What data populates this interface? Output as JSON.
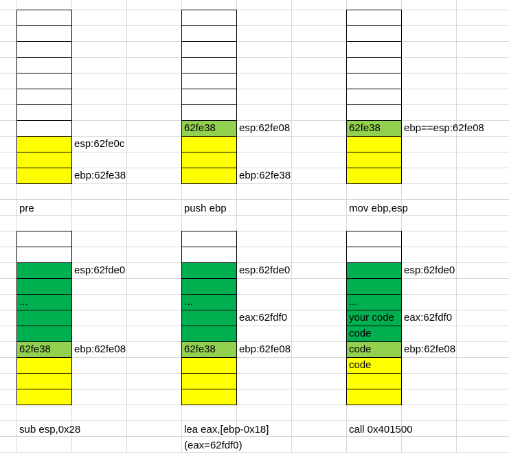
{
  "colors": {
    "empty": "#ffffff",
    "yellow": "#ffff00",
    "green": "#00b050",
    "light_green": "#92d050",
    "border": "#000000",
    "gridline": "#d9d9d9"
  },
  "panels": [
    {
      "caption": [
        "pre"
      ],
      "cells": [
        {
          "color": "empty",
          "text": ""
        },
        {
          "color": "empty",
          "text": ""
        },
        {
          "color": "empty",
          "text": ""
        },
        {
          "color": "empty",
          "text": ""
        },
        {
          "color": "empty",
          "text": ""
        },
        {
          "color": "empty",
          "text": ""
        },
        {
          "color": "empty",
          "text": ""
        },
        {
          "color": "empty",
          "text": ""
        },
        {
          "color": "yellow",
          "text": ""
        },
        {
          "color": "yellow",
          "text": ""
        },
        {
          "color": "yellow",
          "text": ""
        }
      ],
      "labels": [
        {
          "row": 8,
          "text": "esp:62fe0c"
        },
        {
          "row": 10,
          "text": "ebp:62fe38"
        }
      ]
    },
    {
      "caption": [
        "push ebp"
      ],
      "cells": [
        {
          "color": "empty",
          "text": ""
        },
        {
          "color": "empty",
          "text": ""
        },
        {
          "color": "empty",
          "text": ""
        },
        {
          "color": "empty",
          "text": ""
        },
        {
          "color": "empty",
          "text": ""
        },
        {
          "color": "empty",
          "text": ""
        },
        {
          "color": "empty",
          "text": ""
        },
        {
          "color": "light_green",
          "text": "62fe38"
        },
        {
          "color": "yellow",
          "text": ""
        },
        {
          "color": "yellow",
          "text": ""
        },
        {
          "color": "yellow",
          "text": ""
        }
      ],
      "labels": [
        {
          "row": 7,
          "text": "esp:62fe08"
        },
        {
          "row": 10,
          "text": "ebp:62fe38"
        }
      ]
    },
    {
      "caption": [
        "mov ebp,esp"
      ],
      "cells": [
        {
          "color": "empty",
          "text": ""
        },
        {
          "color": "empty",
          "text": ""
        },
        {
          "color": "empty",
          "text": ""
        },
        {
          "color": "empty",
          "text": ""
        },
        {
          "color": "empty",
          "text": ""
        },
        {
          "color": "empty",
          "text": ""
        },
        {
          "color": "empty",
          "text": ""
        },
        {
          "color": "light_green",
          "text": "62fe38"
        },
        {
          "color": "yellow",
          "text": ""
        },
        {
          "color": "yellow",
          "text": ""
        },
        {
          "color": "yellow",
          "text": ""
        }
      ],
      "labels": [
        {
          "row": 7,
          "text": "ebp==esp:62fe08"
        }
      ]
    },
    {
      "caption": [
        "sub esp,0x28"
      ],
      "cells": [
        {
          "color": "empty",
          "text": ""
        },
        {
          "color": "empty",
          "text": ""
        },
        {
          "color": "green",
          "text": ""
        },
        {
          "color": "green",
          "text": ""
        },
        {
          "color": "green",
          "text": "..."
        },
        {
          "color": "green",
          "text": ""
        },
        {
          "color": "green",
          "text": ""
        },
        {
          "color": "light_green",
          "text": "62fe38"
        },
        {
          "color": "yellow",
          "text": ""
        },
        {
          "color": "yellow",
          "text": ""
        },
        {
          "color": "yellow",
          "text": ""
        }
      ],
      "labels": [
        {
          "row": 2,
          "text": "esp:62fde0"
        },
        {
          "row": 7,
          "text": "ebp:62fe08"
        }
      ]
    },
    {
      "caption": [
        "lea eax,[ebp-0x18]",
        "(eax=62fdf0)"
      ],
      "cells": [
        {
          "color": "empty",
          "text": ""
        },
        {
          "color": "empty",
          "text": ""
        },
        {
          "color": "green",
          "text": ""
        },
        {
          "color": "green",
          "text": ""
        },
        {
          "color": "green",
          "text": "..."
        },
        {
          "color": "green",
          "text": ""
        },
        {
          "color": "green",
          "text": ""
        },
        {
          "color": "light_green",
          "text": "62fe38"
        },
        {
          "color": "yellow",
          "text": ""
        },
        {
          "color": "yellow",
          "text": ""
        },
        {
          "color": "yellow",
          "text": ""
        }
      ],
      "labels": [
        {
          "row": 2,
          "text": "esp:62fde0"
        },
        {
          "row": 5,
          "text": "eax:62fdf0"
        },
        {
          "row": 7,
          "text": "ebp:62fe08"
        }
      ]
    },
    {
      "caption": [
        "call 0x401500"
      ],
      "cells": [
        {
          "color": "empty",
          "text": ""
        },
        {
          "color": "empty",
          "text": ""
        },
        {
          "color": "green",
          "text": ""
        },
        {
          "color": "green",
          "text": ""
        },
        {
          "color": "green",
          "text": "..."
        },
        {
          "color": "green",
          "text": "your code"
        },
        {
          "color": "green",
          "text": "code"
        },
        {
          "color": "light_green",
          "text": "code"
        },
        {
          "color": "yellow",
          "text": "code"
        },
        {
          "color": "yellow",
          "text": ""
        },
        {
          "color": "yellow",
          "text": ""
        }
      ],
      "labels": [
        {
          "row": 2,
          "text": "esp:62fde0"
        },
        {
          "row": 5,
          "text": "eax:62fdf0"
        },
        {
          "row": 7,
          "text": "ebp:62fe08"
        }
      ]
    }
  ]
}
